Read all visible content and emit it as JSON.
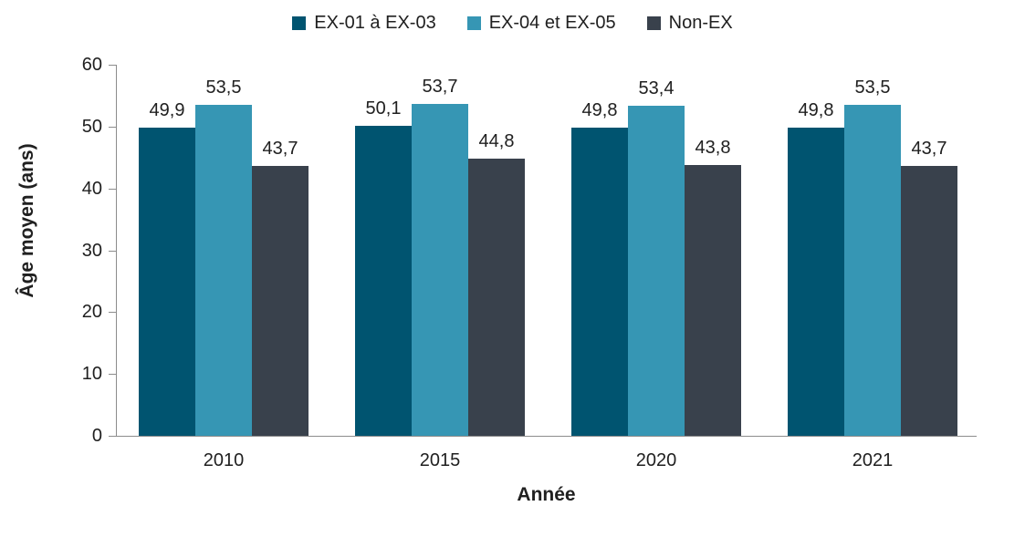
{
  "chart_data": {
    "type": "bar",
    "title": "",
    "categories": [
      "2010",
      "2015",
      "2020",
      "2021"
    ],
    "series": [
      {
        "name": "EX-01 à EX-03",
        "color": "#005470",
        "values": [
          49.9,
          50.1,
          49.8,
          49.8
        ],
        "labels": [
          "49,9",
          "50,1",
          "49,8",
          "49,8"
        ]
      },
      {
        "name": "EX-04 et EX-05",
        "color": "#3696B4",
        "values": [
          53.5,
          53.7,
          53.4,
          53.5
        ],
        "labels": [
          "53,5",
          "53,7",
          "53,4",
          "53,5"
        ]
      },
      {
        "name": "Non-EX",
        "color": "#39414C",
        "values": [
          43.7,
          44.8,
          43.8,
          43.7
        ],
        "labels": [
          "43,7",
          "44,8",
          "43,8",
          "43,7"
        ]
      }
    ],
    "xlabel": "Année",
    "ylabel": "Âge moyen (ans)",
    "ylim": [
      0,
      60
    ],
    "ytick_step": 10,
    "yticks": [
      "0",
      "10",
      "20",
      "30",
      "40",
      "50",
      "60"
    ],
    "grid": false,
    "legend_position": "top",
    "axis_color": "#8c8c8c",
    "text_color": "#202020"
  }
}
